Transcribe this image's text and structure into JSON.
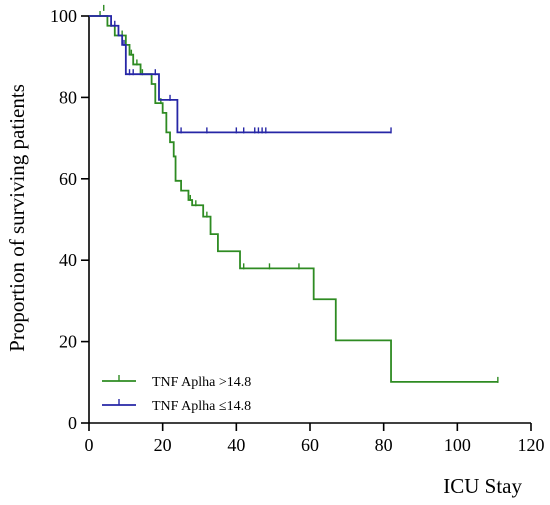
{
  "chart_data": {
    "type": "line",
    "subtype": "kaplan-meier step plot with censor ticks",
    "title": "",
    "xlabel": "ICU Stay",
    "ylabel": "Proportion of surviving patients",
    "xlim": [
      0,
      120
    ],
    "ylim": [
      0,
      100
    ],
    "xticks": [
      0,
      20,
      40,
      60,
      80,
      100,
      120
    ],
    "yticks": [
      0,
      20,
      40,
      60,
      80,
      100
    ],
    "grid": false,
    "legend_position": "bottom-left",
    "series": [
      {
        "name": "TNF Aplha >14.8",
        "color": "#2e8b22",
        "steps": [
          [
            0,
            100
          ],
          [
            5,
            97.6
          ],
          [
            7,
            95.2
          ],
          [
            10,
            92.9
          ],
          [
            11,
            90.5
          ],
          [
            12,
            88.1
          ],
          [
            14,
            85.7
          ],
          [
            17,
            83.3
          ],
          [
            18,
            78.6
          ],
          [
            20,
            76.2
          ],
          [
            21,
            71.4
          ],
          [
            22,
            69.0
          ],
          [
            23,
            65.5
          ],
          [
            23.5,
            59.5
          ],
          [
            25,
            57.1
          ],
          [
            27,
            54.8
          ],
          [
            28,
            53.5
          ],
          [
            31,
            50.7
          ],
          [
            33,
            46.4
          ],
          [
            35,
            42.2
          ],
          [
            41,
            38.0
          ],
          [
            61,
            30.4
          ],
          [
            67,
            20.3
          ],
          [
            82,
            10.1
          ],
          [
            111,
            10.1
          ]
        ],
        "censored": [
          [
            3,
            100
          ],
          [
            4,
            101.5
          ],
          [
            6,
            97.6
          ],
          [
            9,
            95.2
          ],
          [
            11.5,
            90.5
          ],
          [
            13,
            88.1
          ],
          [
            14.5,
            85.7
          ],
          [
            19.5,
            78.6
          ],
          [
            27.5,
            54.8
          ],
          [
            29,
            53.5
          ],
          [
            32,
            50.7
          ],
          [
            42,
            38.0
          ],
          [
            49,
            38.0
          ],
          [
            57,
            38.0
          ],
          [
            111,
            10.1
          ]
        ]
      },
      {
        "name": "TNF Aplha ≤14.8",
        "color": "#2626a6",
        "steps": [
          [
            0,
            100
          ],
          [
            6,
            97.6
          ],
          [
            8,
            95.2
          ],
          [
            9,
            92.9
          ],
          [
            10,
            85.7
          ],
          [
            19,
            79.4
          ],
          [
            24,
            71.4
          ],
          [
            82,
            71.4
          ]
        ],
        "censored": [
          [
            7,
            97.6
          ],
          [
            9.5,
            92.9
          ],
          [
            11,
            85.7
          ],
          [
            12,
            85.7
          ],
          [
            18,
            85.7
          ],
          [
            22,
            79.4
          ],
          [
            25,
            71.4
          ],
          [
            32,
            71.4
          ],
          [
            40,
            71.4
          ],
          [
            42,
            71.4
          ],
          [
            45,
            71.4
          ],
          [
            46,
            71.4
          ],
          [
            47,
            71.4
          ],
          [
            48,
            71.4
          ],
          [
            82,
            71.4
          ]
        ]
      }
    ]
  }
}
